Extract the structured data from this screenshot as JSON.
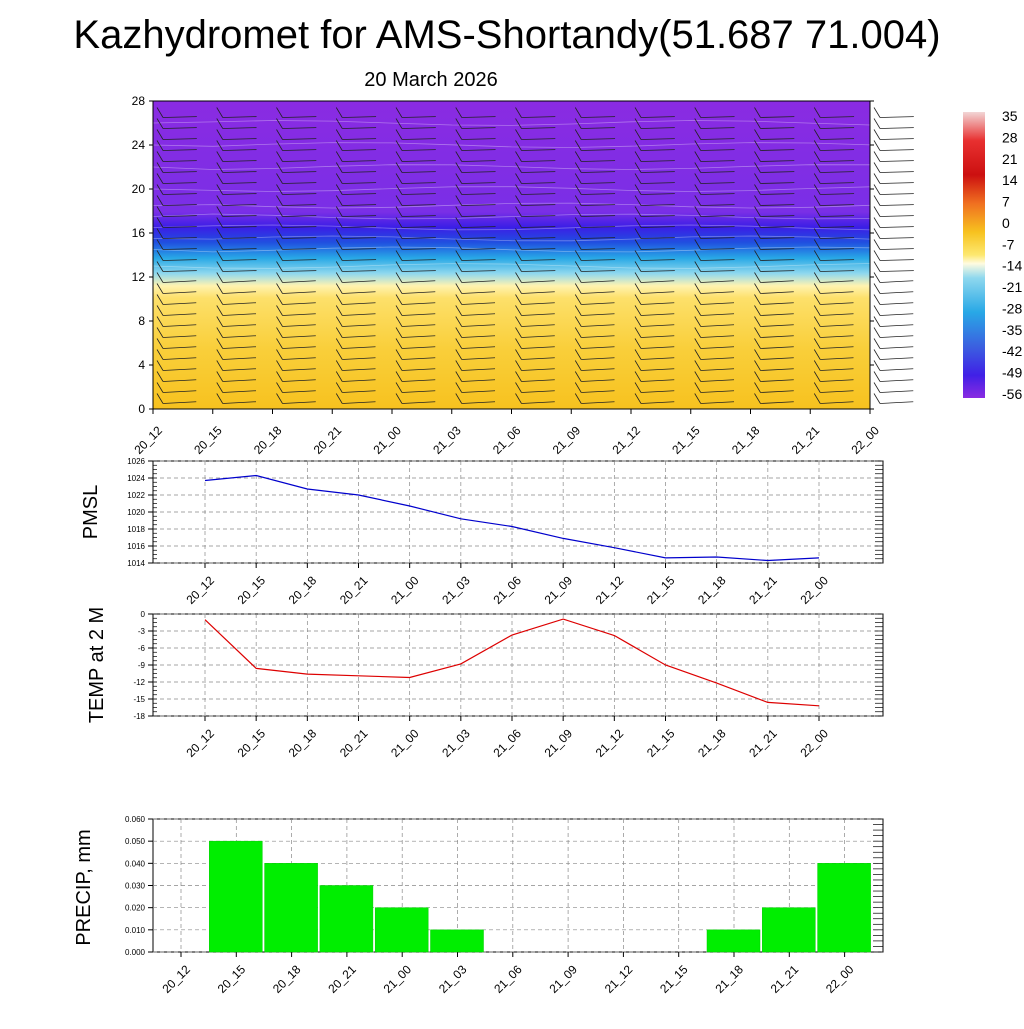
{
  "title": "Kazhydromet for AMS-Shortandy(51.687 71.004)",
  "subtitle": "20 March 2026",
  "time_labels": [
    "20_12",
    "20_15",
    "20_18",
    "20_21",
    "21_00",
    "21_03",
    "21_06",
    "21_09",
    "21_12",
    "21_15",
    "21_18",
    "21_21",
    "22_00"
  ],
  "chart_data": [
    {
      "type": "heatmap",
      "title": "20 March 2026",
      "xlabel": "",
      "ylabel": "",
      "ylim": [
        0,
        28
      ],
      "yticks": [
        "0",
        "4",
        "8",
        "12",
        "16",
        "20",
        "24",
        "28"
      ],
      "x": [
        "20_12",
        "20_15",
        "20_18",
        "20_21",
        "21_00",
        "21_03",
        "21_06",
        "21_09",
        "21_12",
        "21_15",
        "21_18",
        "21_21",
        "22_00"
      ],
      "colorbar_labels": [
        "35",
        "28",
        "21",
        "14",
        "7",
        "0",
        "-7",
        "-14",
        "-21",
        "-28",
        "-35",
        "-42",
        "-49",
        "-56"
      ],
      "colors": {
        "warm": "#f7c21f",
        "mid": "#fde06a",
        "cold": "#3b1ee6",
        "upper": "#8a2be2"
      }
    },
    {
      "type": "line",
      "ylabel": "PMSL",
      "ylim": [
        1014,
        1026
      ],
      "yticks": [
        "1014",
        "1016",
        "1018",
        "1020",
        "1022",
        "1024",
        "1026"
      ],
      "x": [
        "20_12",
        "20_15",
        "20_18",
        "20_21",
        "21_00",
        "21_03",
        "21_06",
        "21_09",
        "21_12",
        "21_15",
        "21_18",
        "21_21",
        "22_00"
      ],
      "values": [
        1023.7,
        1024.3,
        1022.7,
        1022.0,
        1020.7,
        1019.2,
        1018.3,
        1016.9,
        1015.8,
        1014.6,
        1014.7,
        1014.3,
        1014.6
      ],
      "color": "#0000cc"
    },
    {
      "type": "line",
      "ylabel": "TEMP at 2 M",
      "ylim": [
        -18,
        0
      ],
      "yticks": [
        "0",
        "-3",
        "-6",
        "-9",
        "-12",
        "-15",
        "-18"
      ],
      "x": [
        "20_12",
        "20_15",
        "20_18",
        "20_21",
        "21_00",
        "21_03",
        "21_06",
        "21_09",
        "21_12",
        "21_15",
        "21_18",
        "21_21",
        "22_00"
      ],
      "values": [
        -1.0,
        -9.6,
        -10.6,
        -10.9,
        -11.2,
        -8.8,
        -3.7,
        -0.9,
        -3.8,
        -9.0,
        -12.2,
        -15.6,
        -16.2
      ],
      "color": "#dd0000"
    },
    {
      "type": "bar",
      "ylabel": "PRECIP, mm",
      "ylim": [
        0,
        0.06
      ],
      "yticks": [
        "0.000",
        "0.010",
        "0.020",
        "0.030",
        "0.040",
        "0.050",
        "0.060"
      ],
      "categories": [
        "20_12",
        "20_15",
        "20_18",
        "20_21",
        "21_00",
        "21_03",
        "21_06",
        "21_09",
        "21_12",
        "21_15",
        "21_18",
        "21_21",
        "22_00"
      ],
      "values": [
        0,
        0.05,
        0.04,
        0.03,
        0.02,
        0.01,
        0,
        0,
        0,
        0,
        0.01,
        0.02,
        0.04
      ],
      "color": "#00ee00"
    }
  ]
}
